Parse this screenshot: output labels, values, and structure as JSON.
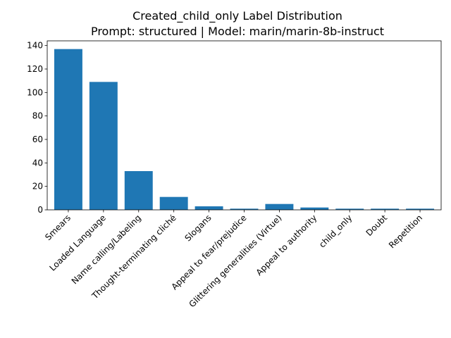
{
  "chart_data": {
    "type": "bar",
    "title": "Created_child_only Label Distribution",
    "subtitle": "Prompt: structured | Model: marin/marin-8b-instruct",
    "xlabel": "",
    "ylabel": "",
    "categories": [
      "Smears",
      "Loaded Language",
      "Name calling/Labeling",
      "Thought-terminating cliché",
      "Slogans",
      "Appeal to fear/prejudice",
      "Glittering generalities (Virtue)",
      "Appeal to authority",
      "child_only",
      "Doubt",
      "Repetition"
    ],
    "values": [
      137,
      109,
      33,
      11,
      3,
      1,
      5,
      2,
      1,
      1,
      1
    ],
    "ylim": [
      0,
      144
    ],
    "yticks": [
      0,
      20,
      40,
      60,
      80,
      100,
      120,
      140
    ],
    "bar_color": "#1f77b4",
    "grid": false,
    "legend": "none"
  }
}
